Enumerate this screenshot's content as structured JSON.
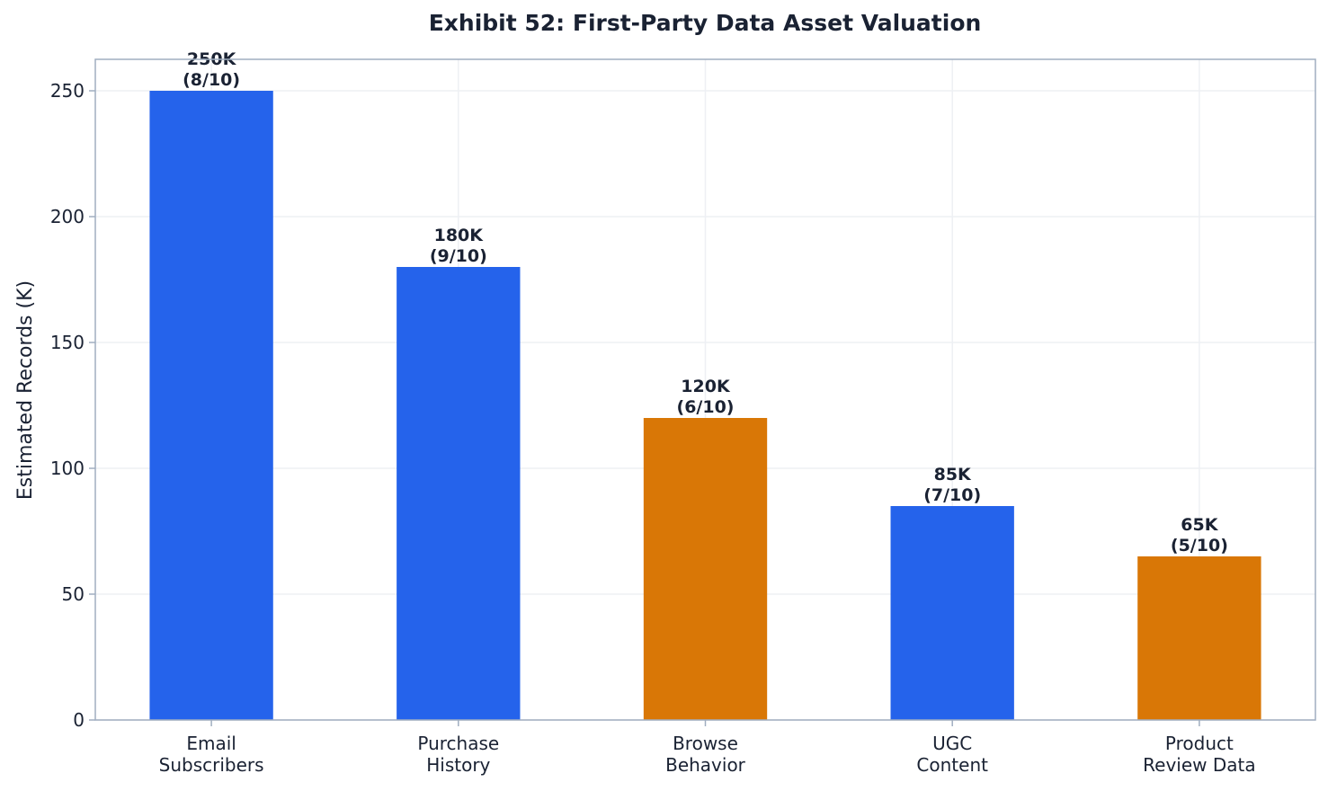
{
  "chart_data": {
    "type": "bar",
    "title": "Exhibit 52: First-Party Data Asset Valuation",
    "xlabel": "",
    "ylabel": "Estimated Records (K)",
    "categories": [
      [
        "Email",
        "Subscribers"
      ],
      [
        "Purchase",
        "History"
      ],
      [
        "Browse",
        "Behavior"
      ],
      [
        "UGC",
        "Content"
      ],
      [
        "Product",
        "Review Data"
      ]
    ],
    "values": [
      250,
      180,
      120,
      85,
      65
    ],
    "data_labels": [
      [
        "250K",
        "(8/10)"
      ],
      [
        "180K",
        "(9/10)"
      ],
      [
        "120K",
        "(6/10)"
      ],
      [
        "85K",
        "(7/10)"
      ],
      [
        "65K",
        "(5/10)"
      ]
    ],
    "bar_colors": [
      "#2563eb",
      "#2563eb",
      "#d97706",
      "#2563eb",
      "#d97706"
    ],
    "ylim": [
      0,
      262.5
    ],
    "yticks": [
      0,
      50,
      100,
      150,
      200,
      250
    ],
    "grid": true,
    "legend": "none",
    "colors": {
      "text": "#1a2233",
      "spine": "#a0aec0",
      "grid": "#eef0f4"
    }
  }
}
